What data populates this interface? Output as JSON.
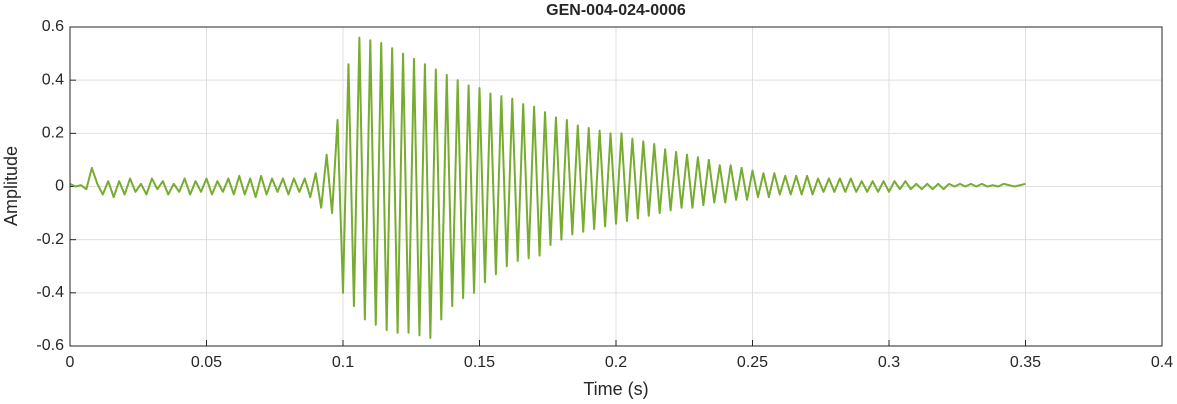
{
  "chart_data": {
    "type": "line",
    "title": "GEN-004-024-0006",
    "x_label": "Time (s)",
    "y_label": "Amplitude",
    "x": [
      0,
      0.002,
      0.004,
      0.006,
      0.008,
      0.01,
      0.012,
      0.014,
      0.016,
      0.018,
      0.02,
      0.022,
      0.024,
      0.026,
      0.028,
      0.03,
      0.032,
      0.034,
      0.036,
      0.038,
      0.04,
      0.042,
      0.044,
      0.046,
      0.048,
      0.05,
      0.052,
      0.054,
      0.056,
      0.058,
      0.06,
      0.062,
      0.064,
      0.066,
      0.068,
      0.07,
      0.072,
      0.074,
      0.076,
      0.078,
      0.08,
      0.082,
      0.084,
      0.086,
      0.088,
      0.09,
      0.092,
      0.094,
      0.096,
      0.098,
      0.1,
      0.102,
      0.104,
      0.106,
      0.108,
      0.11,
      0.112,
      0.114,
      0.116,
      0.118,
      0.12,
      0.122,
      0.124,
      0.126,
      0.128,
      0.13,
      0.132,
      0.134,
      0.136,
      0.138,
      0.14,
      0.142,
      0.144,
      0.146,
      0.148,
      0.15,
      0.152,
      0.154,
      0.156,
      0.158,
      0.16,
      0.162,
      0.164,
      0.166,
      0.168,
      0.17,
      0.172,
      0.174,
      0.176,
      0.178,
      0.18,
      0.182,
      0.184,
      0.186,
      0.188,
      0.19,
      0.192,
      0.194,
      0.196,
      0.198,
      0.2,
      0.202,
      0.204,
      0.206,
      0.208,
      0.21,
      0.212,
      0.214,
      0.216,
      0.218,
      0.22,
      0.222,
      0.224,
      0.226,
      0.228,
      0.23,
      0.232,
      0.234,
      0.236,
      0.238,
      0.24,
      0.242,
      0.244,
      0.246,
      0.248,
      0.25,
      0.252,
      0.254,
      0.256,
      0.258,
      0.26,
      0.262,
      0.264,
      0.266,
      0.268,
      0.27,
      0.272,
      0.274,
      0.276,
      0.278,
      0.28,
      0.282,
      0.284,
      0.286,
      0.288,
      0.29,
      0.292,
      0.294,
      0.296,
      0.298,
      0.3,
      0.302,
      0.304,
      0.306,
      0.308,
      0.31,
      0.312,
      0.314,
      0.316,
      0.318,
      0.32,
      0.322,
      0.324,
      0.326,
      0.328,
      0.33,
      0.332,
      0.334,
      0.336,
      0.338,
      0.34,
      0.342,
      0.344,
      0.346,
      0.348,
      0.35
    ],
    "series": [
      {
        "color": "#77ac30",
        "values": [
          0.01,
          0.0,
          0.005,
          -0.01,
          0.07,
          0.01,
          -0.03,
          0.02,
          -0.04,
          0.02,
          -0.03,
          0.03,
          -0.02,
          0.01,
          -0.03,
          0.03,
          -0.01,
          0.02,
          -0.03,
          0.01,
          -0.02,
          0.03,
          -0.03,
          0.02,
          -0.02,
          0.03,
          -0.03,
          0.02,
          -0.02,
          0.03,
          -0.03,
          0.04,
          -0.03,
          0.03,
          -0.04,
          0.04,
          -0.03,
          0.03,
          -0.02,
          0.03,
          -0.03,
          0.03,
          -0.02,
          0.03,
          -0.04,
          0.05,
          -0.08,
          0.12,
          -0.1,
          0.25,
          -0.4,
          0.46,
          -0.45,
          0.56,
          -0.5,
          0.55,
          -0.52,
          0.54,
          -0.54,
          0.52,
          -0.55,
          0.5,
          -0.55,
          0.48,
          -0.56,
          0.46,
          -0.57,
          0.44,
          -0.5,
          0.42,
          -0.45,
          0.4,
          -0.42,
          0.38,
          -0.4,
          0.37,
          -0.36,
          0.35,
          -0.33,
          0.34,
          -0.3,
          0.33,
          -0.28,
          0.31,
          -0.27,
          0.3,
          -0.26,
          0.28,
          -0.22,
          0.26,
          -0.2,
          0.25,
          -0.18,
          0.23,
          -0.17,
          0.22,
          -0.16,
          0.21,
          -0.15,
          0.2,
          -0.14,
          0.2,
          -0.13,
          0.18,
          -0.12,
          0.17,
          -0.11,
          0.16,
          -0.1,
          0.14,
          -0.09,
          0.13,
          -0.08,
          0.12,
          -0.08,
          0.11,
          -0.07,
          0.1,
          -0.06,
          0.08,
          -0.06,
          0.08,
          -0.05,
          0.07,
          -0.05,
          0.06,
          -0.04,
          0.05,
          -0.04,
          0.05,
          -0.03,
          0.04,
          -0.03,
          0.04,
          -0.03,
          0.04,
          -0.03,
          0.03,
          -0.02,
          0.03,
          -0.02,
          0.03,
          -0.02,
          0.03,
          -0.02,
          0.02,
          -0.02,
          0.02,
          -0.02,
          0.02,
          -0.02,
          0.02,
          -0.01,
          0.02,
          -0.01,
          0.01,
          -0.01,
          0.01,
          -0.01,
          0.01,
          -0.01,
          0.01,
          0.0,
          0.01,
          0.0,
          0.01,
          0.0,
          0.01,
          0.0,
          0.005,
          0.0,
          0.01,
          0.005,
          0.0,
          0.005,
          0.01
        ]
      }
    ],
    "xlim": [
      0,
      0.4
    ],
    "xticks": [
      0,
      0.05,
      0.1,
      0.15,
      0.2,
      0.25,
      0.3,
      0.35,
      0.4
    ],
    "ylim": [
      -0.6,
      0.6
    ],
    "yticks": [
      -0.6,
      -0.4,
      -0.2,
      0,
      0.2,
      0.4,
      0.6
    ],
    "grid": true
  }
}
